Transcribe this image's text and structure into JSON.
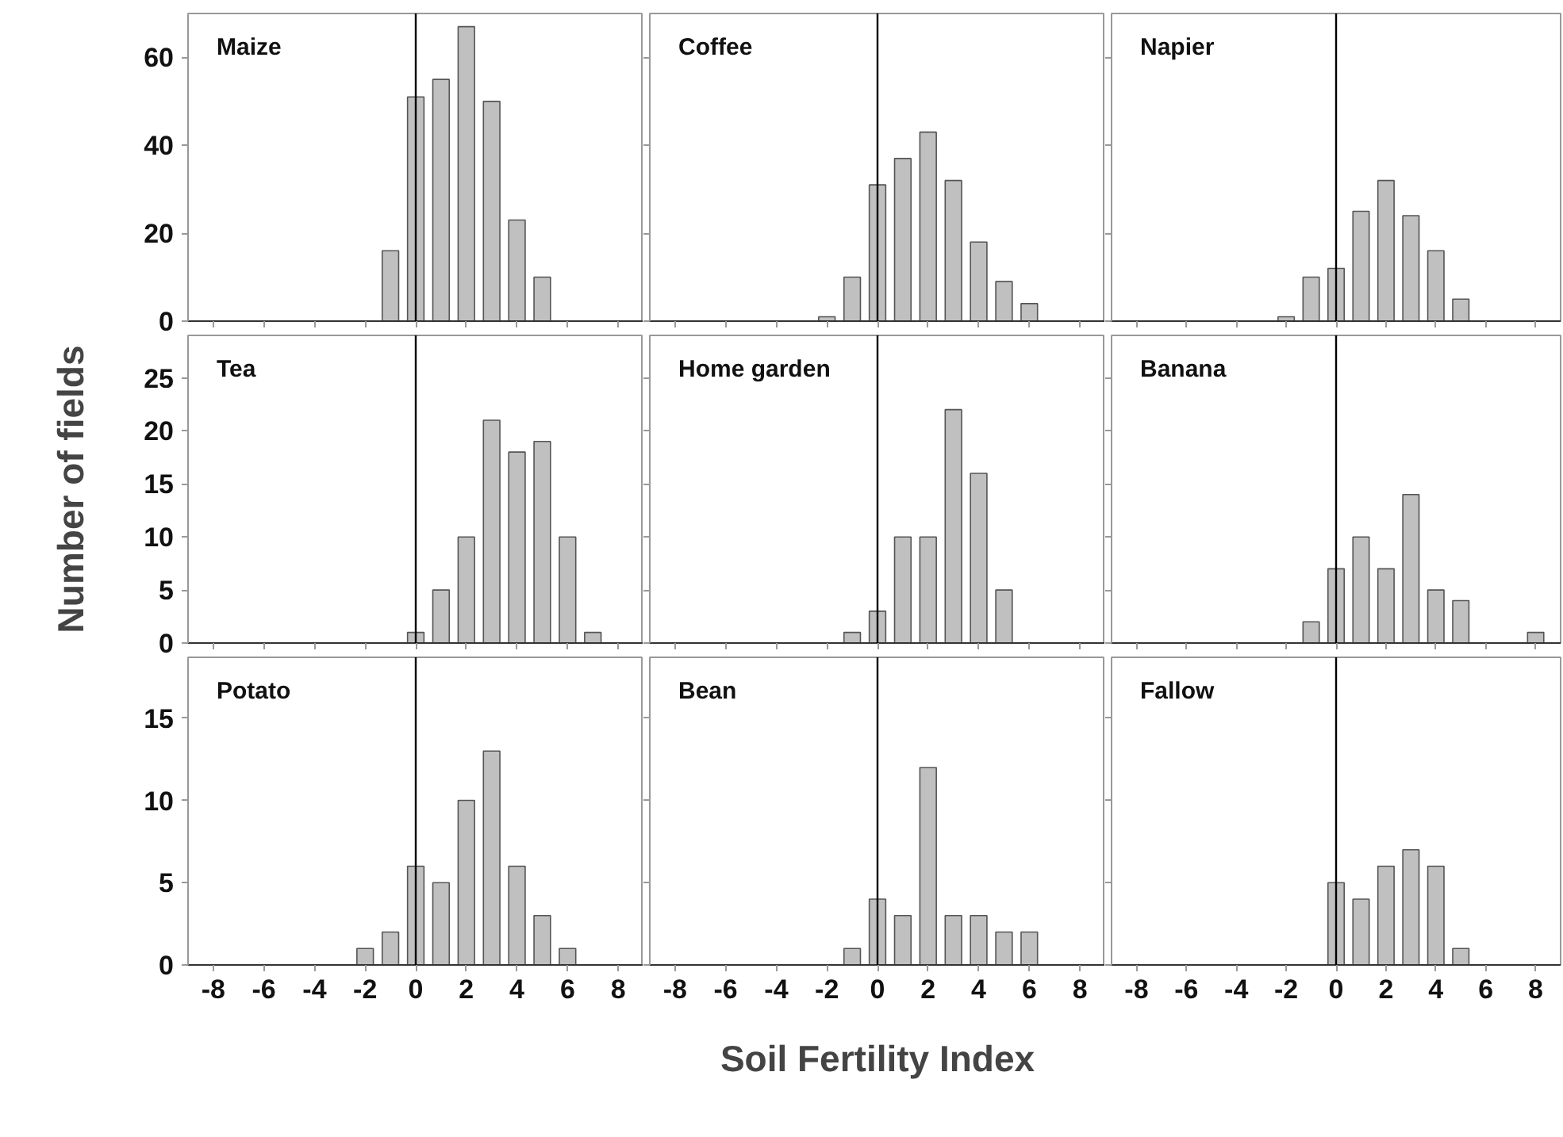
{
  "chart_data": [
    {
      "type": "bar",
      "title": "Maize",
      "x": [
        -1,
        0,
        1,
        2,
        3,
        4,
        5
      ],
      "values": [
        16,
        51,
        55,
        67,
        50,
        23,
        10
      ],
      "color": "#c0c0c0",
      "xlim": [
        -9,
        9
      ],
      "xticks": [
        -8,
        -6,
        -4,
        -2,
        0,
        2,
        4,
        6,
        8
      ],
      "ylim": [
        0,
        70
      ],
      "yticks": [
        0,
        20,
        40,
        60
      ],
      "ref_lines": [
        {
          "axis": "x",
          "value": 0,
          "color": "#000000"
        }
      ],
      "tick_labels": "y"
    },
    {
      "type": "bar",
      "title": "Coffee",
      "x": [
        -2,
        -1,
        0,
        1,
        2,
        3,
        4,
        5,
        6
      ],
      "values": [
        1,
        10,
        31,
        37,
        43,
        32,
        18,
        9,
        4
      ],
      "color": "#c0c0c0",
      "xlim": [
        -9,
        9
      ],
      "xticks": [
        -8,
        -6,
        -4,
        -2,
        0,
        2,
        4,
        6,
        8
      ],
      "ylim": [
        0,
        70
      ],
      "yticks": [
        0,
        20,
        40,
        60
      ],
      "ref_lines": [
        {
          "axis": "x",
          "value": 0,
          "color": "#000000"
        }
      ],
      "tick_labels": false
    },
    {
      "type": "bar",
      "title": "Napier",
      "x": [
        -2,
        -1,
        0,
        1,
        2,
        3,
        4,
        5
      ],
      "values": [
        1,
        10,
        12,
        25,
        32,
        24,
        16,
        5
      ],
      "color": "#c0c0c0",
      "xlim": [
        -9,
        9
      ],
      "xticks": [
        -8,
        -6,
        -4,
        -2,
        0,
        2,
        4,
        6,
        8
      ],
      "ylim": [
        0,
        70
      ],
      "yticks": [
        0,
        20,
        40,
        60
      ],
      "ref_lines": [
        {
          "axis": "x",
          "value": 0,
          "color": "#000000"
        }
      ],
      "tick_labels": false
    },
    {
      "type": "bar",
      "title": "Tea",
      "ylabel": "Number of fields",
      "x": [
        0,
        1,
        2,
        3,
        4,
        5,
        6,
        7
      ],
      "values": [
        1,
        5,
        10,
        21,
        18,
        19,
        10,
        1
      ],
      "color": "#c0c0c0",
      "xlim": [
        -9,
        9
      ],
      "xticks": [
        -8,
        -6,
        -4,
        -2,
        0,
        2,
        4,
        6,
        8
      ],
      "ylim": [
        0,
        29
      ],
      "yticks": [
        0,
        5,
        10,
        15,
        20,
        25
      ],
      "ref_lines": [
        {
          "axis": "x",
          "value": 0,
          "color": "#000000"
        }
      ],
      "tick_labels": "y"
    },
    {
      "type": "bar",
      "title": "Home garden",
      "x": [
        -1,
        0,
        1,
        2,
        3,
        4,
        5
      ],
      "values": [
        1,
        3,
        10,
        10,
        22,
        16,
        5
      ],
      "color": "#c0c0c0",
      "xlim": [
        -9,
        9
      ],
      "xticks": [
        -8,
        -6,
        -4,
        -2,
        0,
        2,
        4,
        6,
        8
      ],
      "ylim": [
        0,
        29
      ],
      "yticks": [
        0,
        5,
        10,
        15,
        20,
        25
      ],
      "ref_lines": [
        {
          "axis": "x",
          "value": 0,
          "color": "#000000"
        }
      ],
      "tick_labels": false
    },
    {
      "type": "bar",
      "title": "Banana",
      "x": [
        -1,
        0,
        1,
        2,
        3,
        4,
        5,
        8
      ],
      "values": [
        2,
        7,
        10,
        7,
        14,
        5,
        4,
        1
      ],
      "color": "#c0c0c0",
      "xlim": [
        -9,
        9
      ],
      "xticks": [
        -8,
        -6,
        -4,
        -2,
        0,
        2,
        4,
        6,
        8
      ],
      "ylim": [
        0,
        29
      ],
      "yticks": [
        0,
        5,
        10,
        15,
        20,
        25
      ],
      "ref_lines": [
        {
          "axis": "x",
          "value": 0,
          "color": "#000000"
        }
      ],
      "tick_labels": false
    },
    {
      "type": "bar",
      "title": "Potato",
      "x": [
        -2,
        -1,
        0,
        1,
        2,
        3,
        4,
        5,
        6
      ],
      "values": [
        1,
        2,
        6,
        5,
        10,
        13,
        6,
        3,
        1
      ],
      "color": "#c0c0c0",
      "xlim": [
        -9,
        9
      ],
      "xticks": [
        -8,
        -6,
        -4,
        -2,
        0,
        2,
        4,
        6,
        8
      ],
      "ylim": [
        0,
        18.7
      ],
      "yticks": [
        0,
        5,
        10,
        15
      ],
      "ref_lines": [
        {
          "axis": "x",
          "value": 0,
          "color": "#000000"
        }
      ]
    },
    {
      "type": "bar",
      "title": "Bean",
      "xlabel": "Soil Fertility Index",
      "x": [
        -1,
        0,
        1,
        2,
        3,
        4,
        5,
        6
      ],
      "values": [
        1,
        4,
        3,
        12,
        3,
        3,
        2,
        2
      ],
      "color": "#c0c0c0",
      "xlim": [
        -9,
        9
      ],
      "xticks": [
        -8,
        -6,
        -4,
        -2,
        0,
        2,
        4,
        6,
        8
      ],
      "ylim": [
        0,
        18.7
      ],
      "yticks": [
        0,
        5,
        10,
        15
      ],
      "ref_lines": [
        {
          "axis": "x",
          "value": 0,
          "color": "#000000"
        }
      ],
      "tick_labels": "x"
    },
    {
      "type": "bar",
      "title": "Fallow",
      "x": [
        0,
        1,
        2,
        3,
        4,
        5
      ],
      "values": [
        5,
        4,
        6,
        7,
        6,
        1
      ],
      "color": "#c0c0c0",
      "xlim": [
        -9,
        9
      ],
      "xticks": [
        -8,
        -6,
        -4,
        -2,
        0,
        2,
        4,
        6,
        8
      ],
      "ylim": [
        0,
        18.7
      ],
      "yticks": [
        0,
        5,
        10,
        15
      ],
      "ref_lines": [
        {
          "axis": "x",
          "value": 0,
          "color": "#000000"
        }
      ],
      "tick_labels": "x"
    }
  ]
}
